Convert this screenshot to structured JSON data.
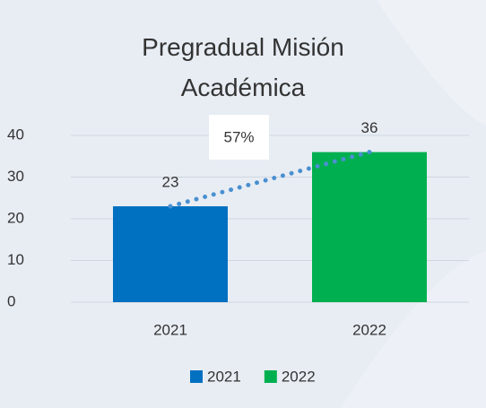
{
  "chart_data": {
    "type": "bar",
    "title": "Pregradual Misión Académica",
    "categories": [
      "2021",
      "2022"
    ],
    "series": [
      {
        "name": "2021",
        "color": "#0070c0",
        "values": [
          23,
          null
        ]
      },
      {
        "name": "2022",
        "color": "#00b050",
        "values": [
          null,
          36
        ]
      }
    ],
    "annotation": "57%",
    "trendline_color": "#4a90d0",
    "ylim": [
      0,
      40
    ],
    "yticks": [
      0,
      10,
      20,
      30,
      40
    ],
    "grid": true
  }
}
